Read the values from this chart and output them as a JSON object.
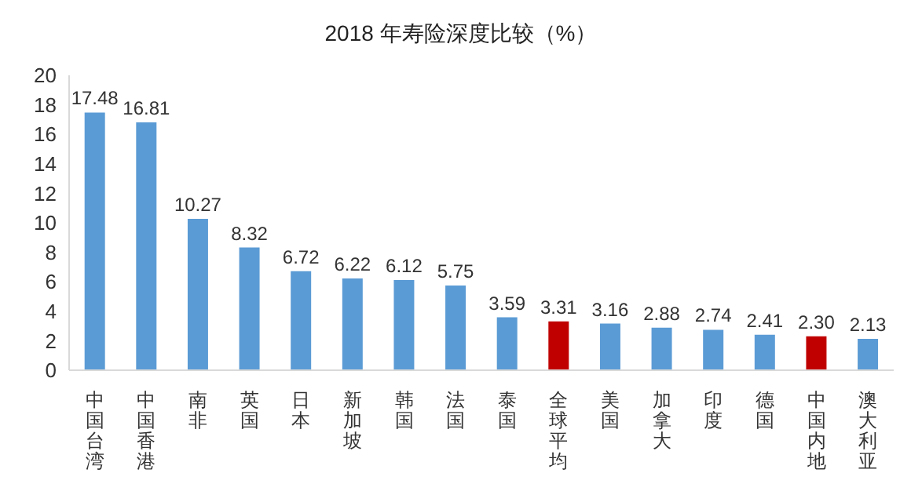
{
  "chart_data": {
    "type": "bar",
    "title": "2018 年寿险深度比较（%）",
    "categories": [
      "中国台湾",
      "中国香港",
      "南非",
      "英国",
      "日本",
      "新加坡",
      "韩国",
      "法国",
      "泰国",
      "全球平均",
      "美国",
      "加拿大",
      "印度",
      "德国",
      "中国内地",
      "澳大利亚"
    ],
    "values": [
      17.48,
      16.81,
      10.27,
      8.32,
      6.72,
      6.22,
      6.12,
      5.75,
      3.59,
      3.31,
      3.16,
      2.88,
      2.74,
      2.41,
      2.3,
      2.13
    ],
    "value_labels": [
      "17.48",
      "16.81",
      "10.27",
      "8.32",
      "6.72",
      "6.22",
      "6.12",
      "5.75",
      "3.59",
      "3.31",
      "3.16",
      "2.88",
      "2.74",
      "2.41",
      "2.30",
      "2.13"
    ],
    "colors": [
      "#5b9bd5",
      "#5b9bd5",
      "#5b9bd5",
      "#5b9bd5",
      "#5b9bd5",
      "#5b9bd5",
      "#5b9bd5",
      "#5b9bd5",
      "#5b9bd5",
      "#c00000",
      "#5b9bd5",
      "#5b9bd5",
      "#5b9bd5",
      "#5b9bd5",
      "#c00000",
      "#5b9bd5"
    ],
    "ylim": [
      0,
      20
    ],
    "yticks": [
      0,
      2,
      4,
      6,
      8,
      10,
      12,
      14,
      16,
      18,
      20
    ],
    "grid": false
  }
}
